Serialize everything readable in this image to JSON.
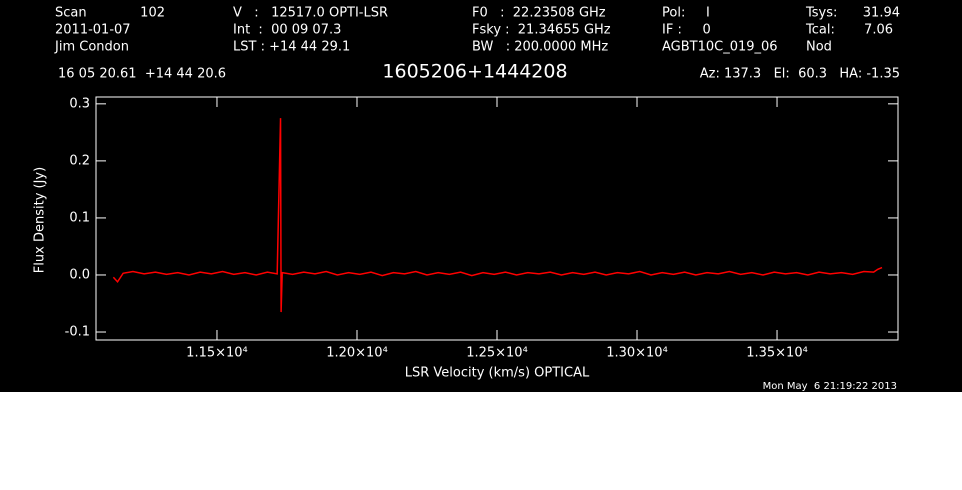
{
  "chart_data": {
    "type": "line",
    "title": "1605206+1444208",
    "annotations": [
      "Scan",
      "102",
      "2011-01-07",
      "Jim Condon",
      "V   :   12517.0 OPTI-LSR",
      "Int  :  00 09 07.3",
      "LST : +14 44 29.1",
      "F0   :  22.23508 GHz",
      "Fsky :  21.34655 GHz",
      "BW   : 200.0000 MHz",
      "Pol:     I",
      "IF :     0",
      "AGBT10C_019_06",
      "Tsys:",
      "31.94",
      "Tcal:",
      "7.06",
      "Nod",
      "16 05 20.61  +14 44 20.6",
      "Az: 137.3   El:  60.3   HA: -1.35",
      "Mon May  6 21:19:22 2013"
    ],
    "xlabel": "LSR Velocity (km/s) OPTICAL",
    "ylabel": "Flux Density (Jy)",
    "xlim": [
      11068,
      13932
    ],
    "ylim": [
      -0.114,
      0.312
    ],
    "xticks": [
      {
        "value": 11500,
        "label": "1.15×10⁴"
      },
      {
        "value": 12000,
        "label": "1.20×10⁴"
      },
      {
        "value": 12500,
        "label": "1.25×10⁴"
      },
      {
        "value": 13000,
        "label": "1.30×10⁴"
      },
      {
        "value": 13500,
        "label": "1.35×10⁴"
      }
    ],
    "yticks": [
      -0.1,
      {
        "value": 0,
        "label": "0.0"
      },
      0.1,
      0.2,
      0.3
    ],
    "x": [
      11130,
      11145,
      11165,
      11200,
      11240,
      11280,
      11320,
      11360,
      11400,
      11440,
      11480,
      11520,
      11560,
      11600,
      11640,
      11680,
      11715,
      11727,
      11729,
      11733,
      11770,
      11810,
      11850,
      11890,
      11930,
      11970,
      12010,
      12050,
      12090,
      12130,
      12170,
      12210,
      12250,
      12290,
      12330,
      12370,
      12410,
      12450,
      12490,
      12530,
      12570,
      12610,
      12650,
      12690,
      12730,
      12770,
      12810,
      12850,
      12890,
      12930,
      12970,
      13010,
      13050,
      13090,
      13130,
      13170,
      13210,
      13250,
      13290,
      13330,
      13370,
      13410,
      13450,
      13490,
      13530,
      13570,
      13610,
      13650,
      13690,
      13730,
      13770,
      13810,
      13845,
      13860,
      13875
    ],
    "series": [
      {
        "color": "#ff0000",
        "values": [
          -0.004,
          -0.012,
          0.003,
          0.006,
          0.002,
          0.005,
          0.001,
          0.004,
          0.0,
          0.005,
          0.002,
          0.006,
          0.001,
          0.004,
          0.0,
          0.005,
          0.002,
          0.275,
          -0.065,
          0.004,
          0.001,
          0.005,
          0.002,
          0.006,
          0.0,
          0.004,
          0.001,
          0.005,
          -0.001,
          0.004,
          0.002,
          0.006,
          0.0,
          0.004,
          0.001,
          0.005,
          -0.001,
          0.004,
          0.001,
          0.005,
          0.0,
          0.004,
          0.002,
          0.005,
          0.0,
          0.004,
          0.001,
          0.005,
          0.0,
          0.004,
          0.002,
          0.006,
          0.0,
          0.004,
          0.001,
          0.005,
          0.0,
          0.004,
          0.002,
          0.006,
          0.001,
          0.004,
          0.0,
          0.005,
          0.002,
          0.004,
          0.0,
          0.005,
          0.002,
          0.004,
          0.001,
          0.006,
          0.005,
          0.01,
          0.013
        ]
      }
    ]
  }
}
